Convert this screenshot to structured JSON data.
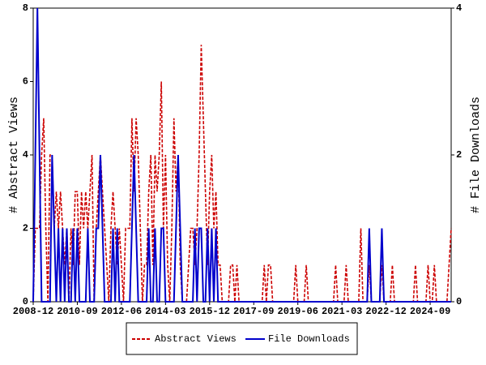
{
  "chart_data": {
    "type": "line",
    "y_label": "# Abstract Views",
    "y2_label": "# File Downloads",
    "x": [
      "2008-12",
      "2009-01",
      "2009-02",
      "2009-03",
      "2009-04",
      "2009-05",
      "2009-06",
      "2009-07",
      "2009-08",
      "2009-09",
      "2009-10",
      "2009-11",
      "2009-12",
      "2010-01",
      "2010-02",
      "2010-03",
      "2010-04",
      "2010-05",
      "2010-06",
      "2010-07",
      "2010-08",
      "2010-09",
      "2010-10",
      "2010-11",
      "2010-12",
      "2011-01",
      "2011-02",
      "2011-03",
      "2011-04",
      "2011-05",
      "2011-06",
      "2011-07",
      "2011-08",
      "2011-09",
      "2011-10",
      "2011-11",
      "2011-12",
      "2012-01",
      "2012-02",
      "2012-03",
      "2012-04",
      "2012-05",
      "2012-06",
      "2012-07",
      "2012-08",
      "2012-09",
      "2012-10",
      "2012-11",
      "2012-12",
      "2013-01",
      "2013-02",
      "2013-03",
      "2013-04",
      "2013-05",
      "2013-06",
      "2013-07",
      "2013-08",
      "2013-09",
      "2013-10",
      "2013-11",
      "2013-12",
      "2014-01",
      "2014-02",
      "2014-03",
      "2014-04",
      "2014-05",
      "2014-06",
      "2014-07",
      "2014-08",
      "2014-09",
      "2014-10",
      "2014-11",
      "2014-12",
      "2015-01",
      "2015-02",
      "2015-03",
      "2015-04",
      "2015-05",
      "2015-06",
      "2015-07",
      "2015-08",
      "2015-09",
      "2015-10",
      "2015-11",
      "2015-12",
      "2016-01",
      "2016-02",
      "2016-03",
      "2016-04",
      "2016-05",
      "2016-06",
      "2016-07",
      "2016-08",
      "2016-09",
      "2016-10",
      "2016-11",
      "2016-12",
      "2017-01",
      "2017-02",
      "2017-03",
      "2017-04",
      "2017-05",
      "2017-06",
      "2017-07",
      "2017-08",
      "2017-09",
      "2017-10",
      "2017-11",
      "2017-12",
      "2018-01",
      "2018-02",
      "2018-03",
      "2018-04",
      "2018-05",
      "2018-06",
      "2018-07",
      "2018-08",
      "2018-09",
      "2018-10",
      "2018-11",
      "2018-12",
      "2019-01",
      "2019-02",
      "2019-03",
      "2019-04",
      "2019-05",
      "2019-06",
      "2019-07",
      "2019-08",
      "2019-09",
      "2019-10",
      "2019-11",
      "2019-12",
      "2020-01",
      "2020-02",
      "2020-03",
      "2020-04",
      "2020-05",
      "2020-06",
      "2020-07",
      "2020-08",
      "2020-09",
      "2020-10",
      "2020-11",
      "2020-12",
      "2021-01",
      "2021-02",
      "2021-03",
      "2021-04",
      "2021-05",
      "2021-06",
      "2021-07",
      "2021-08",
      "2021-09",
      "2021-10",
      "2021-11",
      "2021-12",
      "2022-01",
      "2022-02",
      "2022-03",
      "2022-04",
      "2022-05",
      "2022-06",
      "2022-07",
      "2022-08",
      "2022-09",
      "2022-10",
      "2022-11",
      "2022-12",
      "2023-01",
      "2023-02",
      "2023-03",
      "2023-04",
      "2023-05",
      "2023-06",
      "2023-07",
      "2023-08",
      "2023-09",
      "2023-10",
      "2023-11",
      "2023-12",
      "2024-01",
      "2024-02",
      "2024-03",
      "2024-04",
      "2024-05",
      "2024-06",
      "2024-07",
      "2024-08",
      "2024-09",
      "2024-10",
      "2024-11",
      "2024-12",
      "2025-01",
      "2025-02",
      "2025-03",
      "2025-04",
      "2025-05",
      "2025-06",
      "2025-07"
    ],
    "xlim": [
      "2008-12",
      "2025-07"
    ],
    "xticks": [
      "2008-12",
      "2010-09",
      "2012-06",
      "2014-03",
      "2015-12",
      "2017-09",
      "2019-06",
      "2021-03",
      "2022-12",
      "2024-09"
    ],
    "ylim": [
      0,
      8
    ],
    "yticks": [
      0,
      2,
      4,
      6,
      8
    ],
    "y2lim": [
      0,
      4
    ],
    "y2ticks": [
      0,
      2,
      4
    ],
    "series": [
      {
        "name": "Abstract Views",
        "color": "#cc0000",
        "dashed": true,
        "values": [
          0,
          2,
          2,
          2,
          4,
          5,
          2,
          0,
          4,
          4,
          2,
          3,
          2,
          3,
          2,
          1,
          2,
          0,
          2,
          1,
          3,
          3,
          1,
          3,
          2,
          3,
          2,
          3,
          4,
          0,
          2,
          3,
          4,
          3,
          2,
          1,
          0,
          2,
          3,
          2,
          1,
          2,
          1,
          0,
          2,
          2,
          2,
          5,
          3,
          5,
          4,
          2,
          0,
          1,
          1,
          3,
          4,
          1,
          4,
          3,
          4,
          6,
          2,
          4,
          1,
          0,
          2,
          5,
          3,
          4,
          1,
          0,
          0,
          0,
          1,
          2,
          2,
          1,
          2,
          4,
          7,
          5,
          3,
          1,
          3,
          4,
          2,
          3,
          1,
          1,
          0,
          0,
          0,
          0,
          1,
          1,
          0,
          1,
          0,
          0,
          0,
          0,
          0,
          0,
          0,
          0,
          0,
          0,
          0,
          0,
          1,
          0,
          1,
          1,
          0,
          0,
          0,
          0,
          0,
          0,
          0,
          0,
          0,
          0,
          0,
          1,
          0,
          0,
          0,
          0,
          1,
          0,
          0,
          0,
          0,
          0,
          0,
          0,
          0,
          0,
          0,
          0,
          0,
          0,
          1,
          0,
          0,
          0,
          0,
          1,
          0,
          0,
          0,
          0,
          0,
          0,
          2,
          0,
          0,
          0,
          1,
          0,
          0,
          0,
          0,
          0,
          1,
          0,
          0,
          0,
          0,
          1,
          0,
          0,
          0,
          0,
          0,
          0,
          0,
          0,
          0,
          0,
          1,
          0,
          0,
          0,
          0,
          0,
          1,
          0,
          0,
          1,
          0,
          0,
          0,
          0,
          0,
          0,
          1,
          2
        ]
      },
      {
        "name": "File Downloads",
        "color": "#0000cc",
        "dashed": false,
        "axis": "y2",
        "values": [
          0,
          2,
          4,
          2,
          0,
          0,
          0,
          0,
          0,
          2,
          1,
          0,
          1,
          0,
          1,
          0,
          1,
          0,
          0,
          1,
          0,
          1,
          0,
          0,
          0,
          0,
          1,
          0,
          0,
          0,
          1,
          1,
          2,
          1,
          0,
          0,
          0,
          0,
          1,
          0,
          1,
          0,
          0,
          0,
          0,
          0,
          0,
          1,
          2,
          1,
          0,
          0,
          0,
          0,
          0,
          1,
          0,
          0,
          1,
          0,
          0,
          1,
          1,
          0,
          0,
          0,
          0,
          0,
          1,
          2,
          1,
          0,
          0,
          0,
          0,
          0,
          0,
          1,
          0,
          1,
          1,
          0,
          0,
          1,
          0,
          1,
          0,
          1,
          0,
          0,
          0,
          0,
          0,
          0,
          0,
          0,
          0,
          0,
          0,
          0,
          0,
          0,
          0,
          0,
          0,
          0,
          0,
          0,
          0,
          0,
          0,
          0,
          0,
          0,
          0,
          0,
          0,
          0,
          0,
          0,
          0,
          0,
          0,
          0,
          0,
          0,
          0,
          0,
          0,
          0,
          0,
          0,
          0,
          0,
          0,
          0,
          0,
          0,
          0,
          0,
          0,
          0,
          0,
          0,
          0,
          0,
          0,
          0,
          0,
          0,
          0,
          0,
          0,
          0,
          0,
          0,
          0,
          0,
          0,
          0,
          1,
          0,
          0,
          0,
          0,
          0,
          1,
          0,
          0,
          0,
          0,
          0,
          0,
          0,
          0,
          0,
          0,
          0,
          0,
          0,
          0,
          0,
          0,
          0,
          0,
          0,
          0,
          0,
          0,
          0,
          0,
          0,
          0,
          0,
          0,
          0,
          0,
          0,
          0,
          0
        ]
      }
    ]
  }
}
